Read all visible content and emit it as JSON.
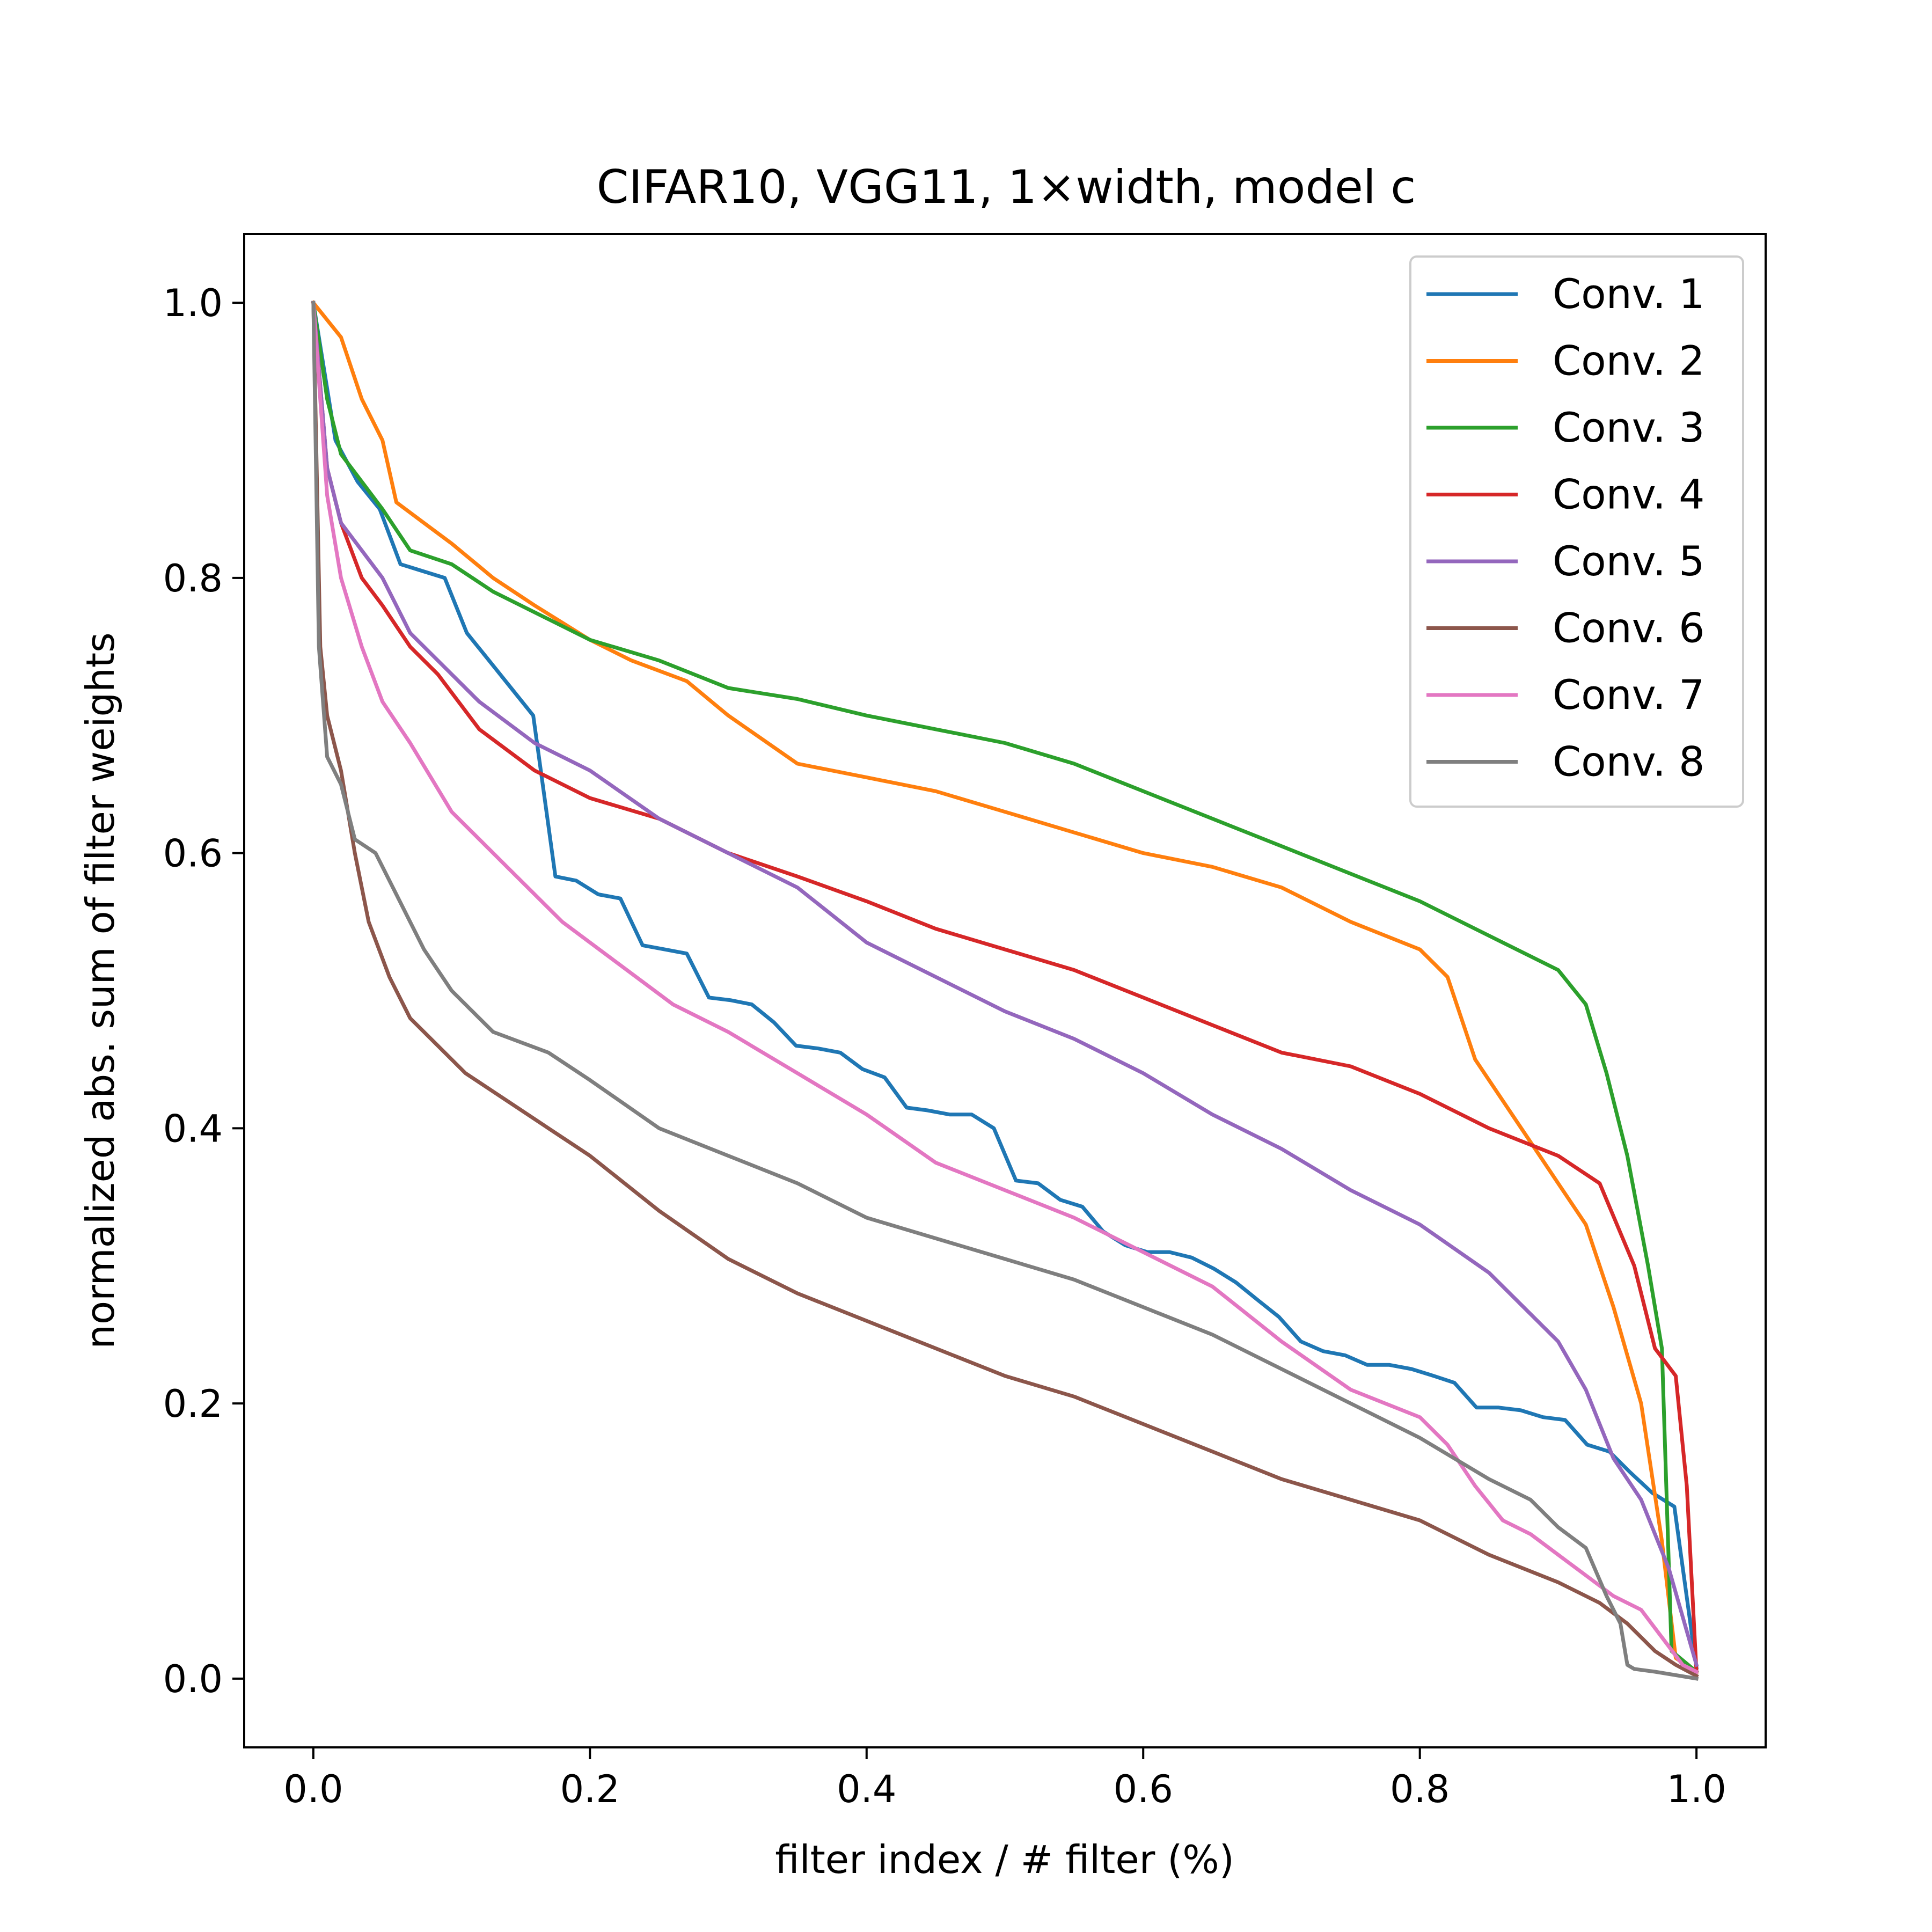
{
  "chart_data": {
    "type": "line",
    "title": "CIFAR10, VGG11, 1×width, model c",
    "xlabel": "filter index / # filter (%)",
    "ylabel": "normalized abs. sum of filter weights",
    "xlim": [
      -0.05,
      1.05
    ],
    "ylim": [
      -0.05,
      1.05
    ],
    "xticks": [
      0.0,
      0.2,
      0.4,
      0.6,
      0.8,
      1.0
    ],
    "yticks": [
      0.0,
      0.2,
      0.4,
      0.6,
      0.8,
      1.0
    ],
    "xtick_labels": [
      "0.0",
      "0.2",
      "0.4",
      "0.6",
      "0.8",
      "1.0"
    ],
    "ytick_labels": [
      "0.0",
      "0.2",
      "0.4",
      "0.6",
      "0.8",
      "1.0"
    ],
    "grid": false,
    "legend_position": "top-right",
    "series": [
      {
        "name": "Conv. 1",
        "color": "#1f77b4",
        "x": [
          0.0,
          0.016,
          0.032,
          0.048,
          0.063,
          0.079,
          0.095,
          0.111,
          0.127,
          0.143,
          0.159,
          0.175,
          0.19,
          0.206,
          0.222,
          0.238,
          0.254,
          0.27,
          0.286,
          0.302,
          0.317,
          0.333,
          0.349,
          0.365,
          0.381,
          0.397,
          0.413,
          0.429,
          0.444,
          0.46,
          0.476,
          0.492,
          0.508,
          0.524,
          0.54,
          0.556,
          0.571,
          0.587,
          0.603,
          0.619,
          0.635,
          0.651,
          0.667,
          0.683,
          0.698,
          0.714,
          0.73,
          0.746,
          0.762,
          0.778,
          0.794,
          0.81,
          0.825,
          0.841,
          0.857,
          0.873,
          0.889,
          0.905,
          0.921,
          0.937,
          0.952,
          0.968,
          0.984,
          1.0
        ],
        "y": [
          1.0,
          0.9,
          0.87,
          0.85,
          0.81,
          0.805,
          0.8,
          0.76,
          0.74,
          0.72,
          0.7,
          0.583,
          0.58,
          0.57,
          0.567,
          0.533,
          0.53,
          0.527,
          0.495,
          0.493,
          0.49,
          0.477,
          0.46,
          0.458,
          0.455,
          0.443,
          0.437,
          0.415,
          0.413,
          0.41,
          0.41,
          0.4,
          0.362,
          0.36,
          0.348,
          0.343,
          0.325,
          0.315,
          0.31,
          0.31,
          0.306,
          0.298,
          0.288,
          0.275,
          0.263,
          0.245,
          0.238,
          0.235,
          0.228,
          0.228,
          0.225,
          0.22,
          0.215,
          0.197,
          0.197,
          0.195,
          0.19,
          0.188,
          0.17,
          0.165,
          0.15,
          0.135,
          0.125,
          0.008
        ]
      },
      {
        "name": "Conv. 2",
        "color": "#ff7f0e",
        "x": [
          0.0,
          0.02,
          0.035,
          0.05,
          0.06,
          0.08,
          0.1,
          0.13,
          0.16,
          0.2,
          0.23,
          0.27,
          0.3,
          0.35,
          0.4,
          0.45,
          0.5,
          0.55,
          0.6,
          0.65,
          0.7,
          0.75,
          0.8,
          0.82,
          0.84,
          0.86,
          0.88,
          0.9,
          0.92,
          0.94,
          0.96,
          0.975,
          0.985,
          1.0
        ],
        "y": [
          1.0,
          0.975,
          0.93,
          0.9,
          0.855,
          0.84,
          0.825,
          0.8,
          0.78,
          0.755,
          0.74,
          0.725,
          0.7,
          0.665,
          0.655,
          0.645,
          0.63,
          0.615,
          0.6,
          0.59,
          0.575,
          0.55,
          0.53,
          0.51,
          0.45,
          0.42,
          0.39,
          0.36,
          0.33,
          0.27,
          0.2,
          0.1,
          0.015,
          0.005
        ]
      },
      {
        "name": "Conv. 3",
        "color": "#2ca02c",
        "x": [
          0.0,
          0.01,
          0.02,
          0.035,
          0.05,
          0.07,
          0.1,
          0.13,
          0.17,
          0.2,
          0.25,
          0.3,
          0.35,
          0.4,
          0.45,
          0.5,
          0.55,
          0.6,
          0.65,
          0.7,
          0.75,
          0.8,
          0.85,
          0.9,
          0.92,
          0.935,
          0.95,
          0.965,
          0.975,
          0.982,
          1.0
        ],
        "y": [
          1.0,
          0.93,
          0.89,
          0.87,
          0.85,
          0.82,
          0.81,
          0.79,
          0.77,
          0.755,
          0.74,
          0.72,
          0.712,
          0.7,
          0.69,
          0.68,
          0.665,
          0.645,
          0.625,
          0.605,
          0.585,
          0.565,
          0.54,
          0.515,
          0.49,
          0.44,
          0.38,
          0.3,
          0.24,
          0.02,
          0.005
        ]
      },
      {
        "name": "Conv. 4",
        "color": "#d62728",
        "x": [
          0.0,
          0.01,
          0.02,
          0.035,
          0.05,
          0.07,
          0.09,
          0.12,
          0.16,
          0.2,
          0.25,
          0.3,
          0.35,
          0.4,
          0.45,
          0.5,
          0.55,
          0.6,
          0.65,
          0.7,
          0.75,
          0.8,
          0.85,
          0.9,
          0.93,
          0.955,
          0.97,
          0.985,
          0.993,
          1.0
        ],
        "y": [
          1.0,
          0.88,
          0.84,
          0.8,
          0.78,
          0.75,
          0.73,
          0.69,
          0.66,
          0.64,
          0.625,
          0.6,
          0.583,
          0.565,
          0.545,
          0.53,
          0.515,
          0.495,
          0.475,
          0.455,
          0.445,
          0.425,
          0.4,
          0.38,
          0.36,
          0.3,
          0.24,
          0.22,
          0.14,
          0.005
        ]
      },
      {
        "name": "Conv. 5",
        "color": "#9467bd",
        "x": [
          0.0,
          0.01,
          0.02,
          0.035,
          0.05,
          0.07,
          0.09,
          0.12,
          0.16,
          0.2,
          0.25,
          0.3,
          0.35,
          0.4,
          0.45,
          0.5,
          0.55,
          0.6,
          0.65,
          0.7,
          0.75,
          0.8,
          0.85,
          0.9,
          0.92,
          0.94,
          0.96,
          0.98,
          1.0
        ],
        "y": [
          1.0,
          0.88,
          0.84,
          0.82,
          0.8,
          0.76,
          0.74,
          0.71,
          0.68,
          0.66,
          0.625,
          0.6,
          0.575,
          0.535,
          0.51,
          0.485,
          0.465,
          0.44,
          0.41,
          0.385,
          0.355,
          0.33,
          0.295,
          0.245,
          0.21,
          0.16,
          0.13,
          0.08,
          0.01
        ]
      },
      {
        "name": "Conv. 6",
        "color": "#8c564b",
        "x": [
          0.0,
          0.005,
          0.01,
          0.02,
          0.03,
          0.04,
          0.055,
          0.07,
          0.09,
          0.11,
          0.14,
          0.17,
          0.2,
          0.25,
          0.3,
          0.35,
          0.4,
          0.45,
          0.5,
          0.55,
          0.6,
          0.65,
          0.7,
          0.75,
          0.8,
          0.85,
          0.9,
          0.93,
          0.95,
          0.97,
          0.985,
          1.0
        ],
        "y": [
          1.0,
          0.75,
          0.7,
          0.66,
          0.6,
          0.55,
          0.51,
          0.48,
          0.46,
          0.44,
          0.42,
          0.4,
          0.38,
          0.34,
          0.305,
          0.28,
          0.26,
          0.24,
          0.22,
          0.205,
          0.185,
          0.165,
          0.145,
          0.13,
          0.115,
          0.09,
          0.07,
          0.055,
          0.04,
          0.02,
          0.01,
          0.002
        ]
      },
      {
        "name": "Conv. 7",
        "color": "#e377c2",
        "x": [
          0.0,
          0.01,
          0.02,
          0.035,
          0.05,
          0.07,
          0.1,
          0.14,
          0.18,
          0.22,
          0.26,
          0.3,
          0.35,
          0.4,
          0.45,
          0.5,
          0.55,
          0.6,
          0.65,
          0.7,
          0.75,
          0.8,
          0.82,
          0.84,
          0.86,
          0.88,
          0.9,
          0.92,
          0.94,
          0.96,
          0.975,
          0.99,
          1.0
        ],
        "y": [
          1.0,
          0.86,
          0.8,
          0.75,
          0.71,
          0.68,
          0.63,
          0.59,
          0.55,
          0.52,
          0.49,
          0.47,
          0.44,
          0.41,
          0.375,
          0.355,
          0.335,
          0.31,
          0.285,
          0.245,
          0.21,
          0.19,
          0.17,
          0.14,
          0.115,
          0.105,
          0.09,
          0.075,
          0.06,
          0.05,
          0.03,
          0.01,
          0.005
        ]
      },
      {
        "name": "Conv. 8",
        "color": "#7f7f7f",
        "x": [
          0.0,
          0.004,
          0.01,
          0.02,
          0.03,
          0.045,
          0.06,
          0.08,
          0.1,
          0.13,
          0.17,
          0.2,
          0.25,
          0.3,
          0.35,
          0.4,
          0.45,
          0.5,
          0.55,
          0.6,
          0.65,
          0.7,
          0.75,
          0.8,
          0.85,
          0.88,
          0.9,
          0.92,
          0.935,
          0.945,
          0.95,
          0.955,
          0.97,
          1.0
        ],
        "y": [
          1.0,
          0.75,
          0.67,
          0.65,
          0.61,
          0.6,
          0.57,
          0.53,
          0.5,
          0.47,
          0.455,
          0.435,
          0.4,
          0.38,
          0.36,
          0.335,
          0.32,
          0.305,
          0.29,
          0.27,
          0.25,
          0.225,
          0.2,
          0.175,
          0.145,
          0.13,
          0.11,
          0.095,
          0.06,
          0.04,
          0.01,
          0.007,
          0.005,
          0.0
        ]
      }
    ]
  }
}
